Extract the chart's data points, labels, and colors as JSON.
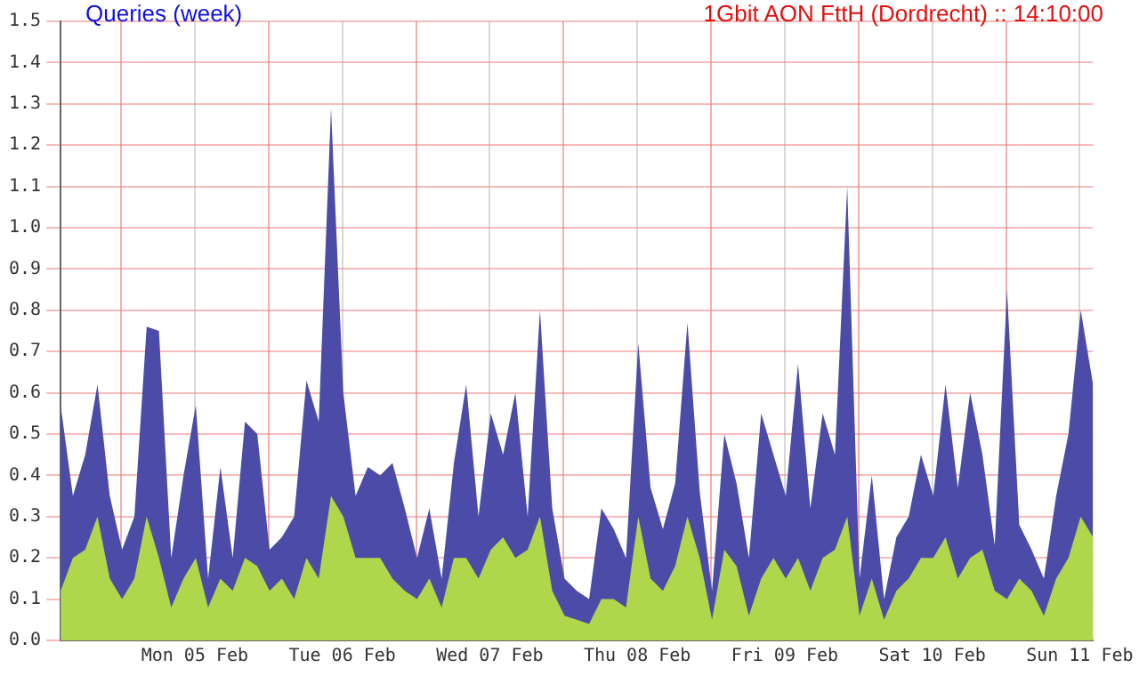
{
  "chart_data": {
    "type": "area",
    "title": "Queries (week)",
    "subtitle": "1Gbit AON FttH (Dordrecht) :: 14:10:00",
    "x": [
      "--02-04T14:10",
      "--02-04T16:10",
      "--02-04T18:10",
      "--02-04T20:10",
      "--02-04T22:10",
      "--02-05T00:10",
      "--02-05T02:10",
      "--02-05T04:10",
      "--02-05T06:10",
      "--02-05T08:10",
      "--02-05T10:10",
      "--02-05T12:10",
      "--02-05T14:10",
      "--02-05T16:10",
      "--02-05T18:10",
      "--02-05T20:10",
      "--02-05T22:10",
      "--02-06T00:10",
      "--02-06T02:10",
      "--02-06T04:10",
      "--02-06T06:10",
      "--02-06T08:10",
      "--02-06T10:10",
      "--02-06T12:10",
      "--02-06T14:10",
      "--02-06T16:10",
      "--02-06T18:10",
      "--02-06T20:10",
      "--02-06T22:10",
      "--02-07T00:10",
      "--02-07T02:10",
      "--02-07T04:10",
      "--02-07T06:10",
      "--02-07T08:10",
      "--02-07T10:10",
      "--02-07T12:10",
      "--02-07T14:10",
      "--02-07T16:10",
      "--02-07T18:10",
      "--02-07T20:10",
      "--02-07T22:10",
      "--02-08T00:10",
      "--02-08T02:10",
      "--02-08T04:10",
      "--02-08T06:10",
      "--02-08T08:10",
      "--02-08T10:10",
      "--02-08T12:10",
      "--02-08T14:10",
      "--02-08T16:10",
      "--02-08T18:10",
      "--02-08T20:10",
      "--02-08T22:10",
      "--02-09T00:10",
      "--02-09T02:10",
      "--02-09T04:10",
      "--02-09T06:10",
      "--02-09T08:10",
      "--02-09T10:10",
      "--02-09T12:10",
      "--02-09T14:10",
      "--02-09T16:10",
      "--02-09T18:10",
      "--02-09T20:10",
      "--02-09T22:10",
      "--02-10T00:10",
      "--02-10T02:10",
      "--02-10T04:10",
      "--02-10T06:10",
      "--02-10T08:10",
      "--02-10T10:10",
      "--02-10T12:10",
      "--02-10T14:10",
      "--02-10T16:10",
      "--02-10T18:10",
      "--02-10T20:10",
      "--02-10T22:10",
      "--02-11T00:10",
      "--02-11T02:10",
      "--02-11T04:10",
      "--02-11T06:10",
      "--02-11T08:10",
      "--02-11T10:10",
      "--02-11T12:10",
      "--02-11T14:10"
    ],
    "series": [
      {
        "color": "#4c4ca8",
        "values": [
          0.57,
          0.35,
          0.45,
          0.62,
          0.35,
          0.22,
          0.3,
          0.76,
          0.75,
          0.2,
          0.4,
          0.57,
          0.15,
          0.42,
          0.2,
          0.53,
          0.5,
          0.22,
          0.25,
          0.3,
          0.63,
          0.53,
          1.29,
          0.6,
          0.35,
          0.42,
          0.4,
          0.43,
          0.32,
          0.2,
          0.32,
          0.15,
          0.43,
          0.62,
          0.3,
          0.55,
          0.45,
          0.6,
          0.3,
          0.8,
          0.32,
          0.15,
          0.12,
          0.1,
          0.32,
          0.27,
          0.2,
          0.72,
          0.37,
          0.27,
          0.38,
          0.77,
          0.36,
          0.12,
          0.5,
          0.38,
          0.2,
          0.55,
          0.45,
          0.35,
          0.67,
          0.32,
          0.55,
          0.45,
          1.1,
          0.15,
          0.4,
          0.1,
          0.25,
          0.3,
          0.45,
          0.35,
          0.62,
          0.37,
          0.6,
          0.45,
          0.23,
          0.85,
          0.28,
          0.22,
          0.15,
          0.35,
          0.5,
          0.8,
          0.62
        ]
      },
      {
        "color": "#b0d64c",
        "values": [
          0.12,
          0.2,
          0.22,
          0.3,
          0.15,
          0.1,
          0.15,
          0.3,
          0.2,
          0.08,
          0.15,
          0.2,
          0.08,
          0.15,
          0.12,
          0.2,
          0.18,
          0.12,
          0.15,
          0.1,
          0.2,
          0.15,
          0.35,
          0.3,
          0.2,
          0.2,
          0.2,
          0.15,
          0.12,
          0.1,
          0.15,
          0.08,
          0.2,
          0.2,
          0.15,
          0.22,
          0.25,
          0.2,
          0.22,
          0.3,
          0.12,
          0.06,
          0.05,
          0.04,
          0.1,
          0.1,
          0.08,
          0.3,
          0.15,
          0.12,
          0.18,
          0.3,
          0.2,
          0.05,
          0.22,
          0.18,
          0.06,
          0.15,
          0.2,
          0.15,
          0.2,
          0.12,
          0.2,
          0.22,
          0.3,
          0.06,
          0.15,
          0.05,
          0.12,
          0.15,
          0.2,
          0.2,
          0.25,
          0.15,
          0.2,
          0.22,
          0.12,
          0.1,
          0.15,
          0.12,
          0.06,
          0.15,
          0.2,
          0.3,
          0.25
        ]
      }
    ],
    "xlim": [
      "--02-04T14:10",
      "--02-11T14:10"
    ],
    "xticks": [
      {
        "value": "--02-05T00:00",
        "label": null
      },
      {
        "value": "--02-05T12:00",
        "label": "Mon 05 Feb"
      },
      {
        "value": "--02-06T00:00",
        "label": null
      },
      {
        "value": "--02-06T12:00",
        "label": "Tue 06 Feb"
      },
      {
        "value": "--02-07T00:00",
        "label": null
      },
      {
        "value": "--02-07T12:00",
        "label": "Wed 07 Feb"
      },
      {
        "value": "--02-08T00:00",
        "label": null
      },
      {
        "value": "--02-08T12:00",
        "label": "Thu 08 Feb"
      },
      {
        "value": "--02-09T00:00",
        "label": null
      },
      {
        "value": "--02-09T12:00",
        "label": "Fri 09 Feb"
      },
      {
        "value": "--02-10T00:00",
        "label": null
      },
      {
        "value": "--02-10T12:00",
        "label": "Sat 10 Feb"
      },
      {
        "value": "--02-11T00:00",
        "label": null
      },
      {
        "value": "--02-11T12:00",
        "label": "Sun 11 Feb"
      }
    ],
    "ylim": [
      0,
      1.5
    ],
    "yticks": [
      {
        "value": 0,
        "label": "0.0"
      },
      0.1,
      0.2,
      0.3,
      0.4,
      0.5,
      0.6,
      0.7,
      0.8,
      0.9,
      {
        "value": 1,
        "label": "1.0"
      },
      1.1,
      1.2,
      1.3,
      1.4,
      1.5
    ],
    "grid": true,
    "legend": false
  }
}
